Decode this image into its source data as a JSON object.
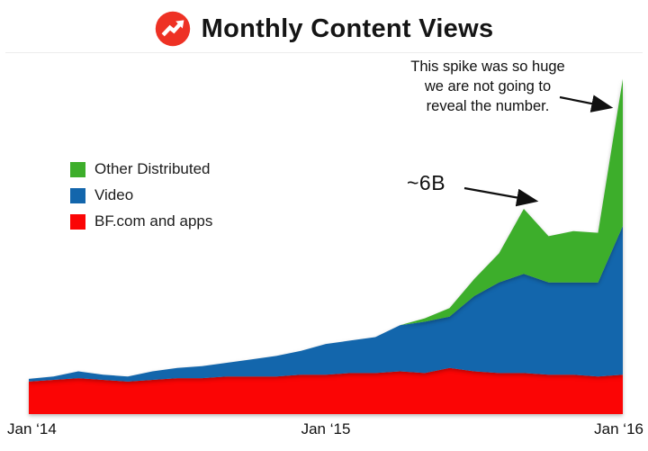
{
  "header": {
    "title": "Monthly Content Views",
    "logo": "red circle with white rising trend arrow"
  },
  "legend": {
    "items": [
      {
        "label": "Other Distributed",
        "color": "#3DAE2B"
      },
      {
        "label": "Video",
        "color": "#1366AC"
      },
      {
        "label": "BF.com and apps",
        "color": "#FB0505"
      }
    ]
  },
  "annotations": {
    "spike_note": {
      "lines": [
        "This spike was so huge",
        "we are not going to",
        "reveal the number."
      ]
    },
    "six_b": {
      "label": "~6B"
    }
  },
  "chart_data": {
    "type": "area",
    "stacked": true,
    "title": "Monthly Content Views",
    "x_tick_labels": [
      "Jan ‘14",
      "Jan ‘15",
      "Jan ‘16"
    ],
    "x_range_note": "25 monthly points from Jan 2014 to Jan 2016",
    "y_unit": "B",
    "ylim": [
      0,
      10
    ],
    "grid": false,
    "legend_position": "middle-left",
    "series": [
      {
        "name": "BF.com and apps",
        "color": "#FB0505",
        "values": [
          0.95,
          1.0,
          1.05,
          1.0,
          0.95,
          1.0,
          1.05,
          1.05,
          1.1,
          1.1,
          1.1,
          1.15,
          1.15,
          1.2,
          1.2,
          1.25,
          1.2,
          1.35,
          1.25,
          1.2,
          1.2,
          1.15,
          1.15,
          1.1,
          1.15
        ]
      },
      {
        "name": "Video",
        "color": "#1366AC",
        "values": [
          0.08,
          0.1,
          0.2,
          0.15,
          0.15,
          0.25,
          0.3,
          0.35,
          0.4,
          0.5,
          0.6,
          0.7,
          0.9,
          0.95,
          1.05,
          1.35,
          1.5,
          1.5,
          2.2,
          2.65,
          2.9,
          2.7,
          2.7,
          2.75,
          4.35
        ]
      },
      {
        "name": "Other Distributed",
        "color": "#3DAE2B",
        "values": [
          0,
          0,
          0,
          0,
          0,
          0,
          0,
          0,
          0,
          0,
          0,
          0,
          0,
          0,
          0,
          0,
          0.1,
          0.25,
          0.5,
          0.85,
          1.9,
          1.35,
          1.5,
          1.45,
          4.3
        ]
      }
    ],
    "annotated_values": {
      "peak_labeled": "~6B",
      "final_spike": "not revealed"
    }
  }
}
